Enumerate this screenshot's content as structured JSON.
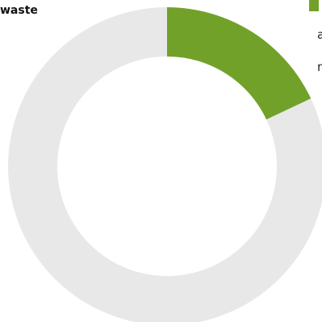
{
  "chart_data": {
    "type": "pie",
    "title_fragment": "waste",
    "legend_fragments": [
      "a",
      "n"
    ],
    "slices": [
      {
        "name": "",
        "value": 18,
        "color": "#72a12a"
      },
      {
        "name": "",
        "value": 82,
        "color": "#e8e8e8"
      }
    ],
    "donut": true
  }
}
